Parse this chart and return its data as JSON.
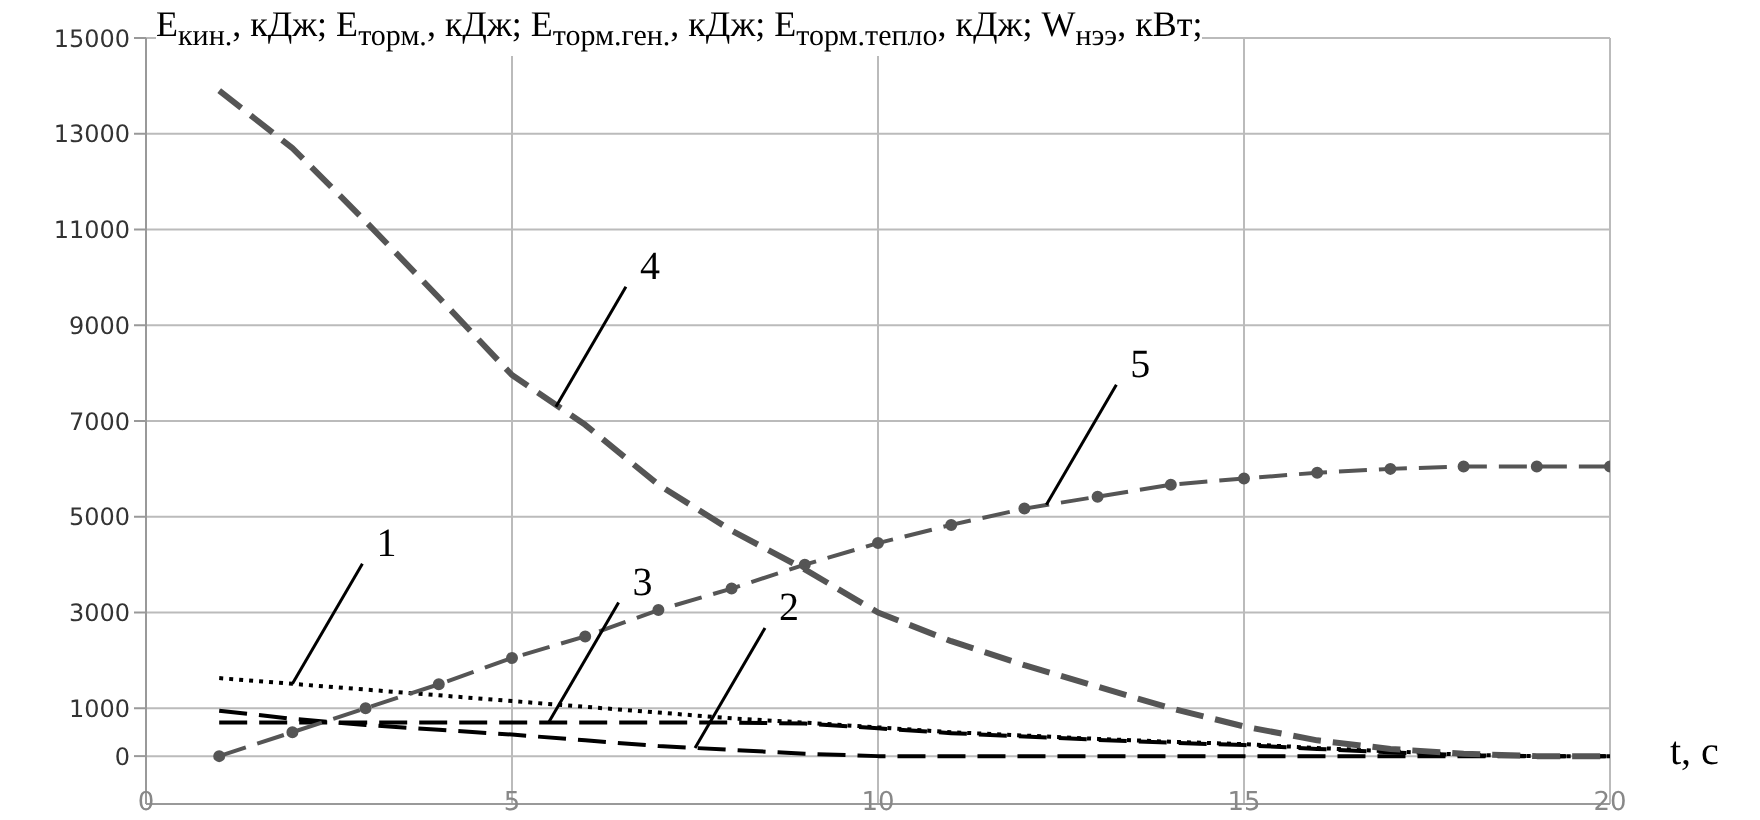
{
  "chart_data": {
    "type": "line",
    "ylabel": "E$_{кин.}$, кДж; E$_{торм.}$, кДж; E$_{торм.ген.}$, кДж; E$_{торм.тепло}$, кДж; W$_{нээ}$, кВт;",
    "xlabel": "t, c",
    "x": [
      1,
      2,
      3,
      4,
      5,
      6,
      7,
      8,
      9,
      10,
      11,
      12,
      13,
      14,
      15,
      16,
      17,
      18,
      19,
      20
    ],
    "xlim": [
      0,
      20
    ],
    "xticks": [
      0,
      5,
      10,
      15,
      20
    ],
    "ylim": [
      -1000,
      15000
    ],
    "yticks": [
      0,
      1000,
      3000,
      5000,
      7000,
      9000,
      11000,
      13000,
      15000
    ],
    "grid": true,
    "legend": false,
    "series": [
      {
        "color": "#000000",
        "line_style": "dotted",
        "marker": "none",
        "values": [
          1630,
          1510,
          1390,
          1270,
          1150,
          1030,
          910,
          790,
          700,
          600,
          500,
          430,
          360,
          300,
          250,
          170,
          100,
          30,
          0,
          0
        ]
      },
      {
        "color": "#000000",
        "line_style": "dashed",
        "marker": "none",
        "values": [
          950,
          780,
          650,
          550,
          450,
          330,
          210,
          130,
          50,
          0,
          0,
          0,
          0,
          0,
          0,
          0,
          0,
          0,
          0,
          0
        ]
      },
      {
        "color": "#000000",
        "line_style": "dashed",
        "marker": "none",
        "values": [
          700,
          700,
          700,
          700,
          700,
          700,
          700,
          700,
          680,
          580,
          480,
          410,
          340,
          280,
          230,
          150,
          80,
          20,
          0,
          0
        ]
      },
      {
        "color": "#555555",
        "line_style": "dashed",
        "marker": "none",
        "values": [
          13900,
          12700,
          11170,
          9580,
          7960,
          6920,
          5670,
          4710,
          3900,
          3000,
          2400,
          1900,
          1450,
          1000,
          620,
          330,
          150,
          50,
          0,
          0
        ]
      },
      {
        "color": "#555555",
        "line_style": "dashed",
        "marker": "circle",
        "values": [
          0,
          500,
          1000,
          1500,
          2050,
          2500,
          3050,
          3500,
          4000,
          4450,
          4830,
          5170,
          5420,
          5670,
          5800,
          5920,
          6000,
          6050,
          6050,
          6050
        ]
      }
    ],
    "annotations": [
      {
        "text": "1",
        "x": 2,
        "y": 1510
      },
      {
        "text": "2",
        "x": 7.5,
        "y": 170
      },
      {
        "text": "3",
        "x": 5.5,
        "y": 700
      },
      {
        "text": "4",
        "x": 5.6,
        "y": 7300
      },
      {
        "text": "5",
        "x": 12.3,
        "y": 5250
      }
    ]
  }
}
